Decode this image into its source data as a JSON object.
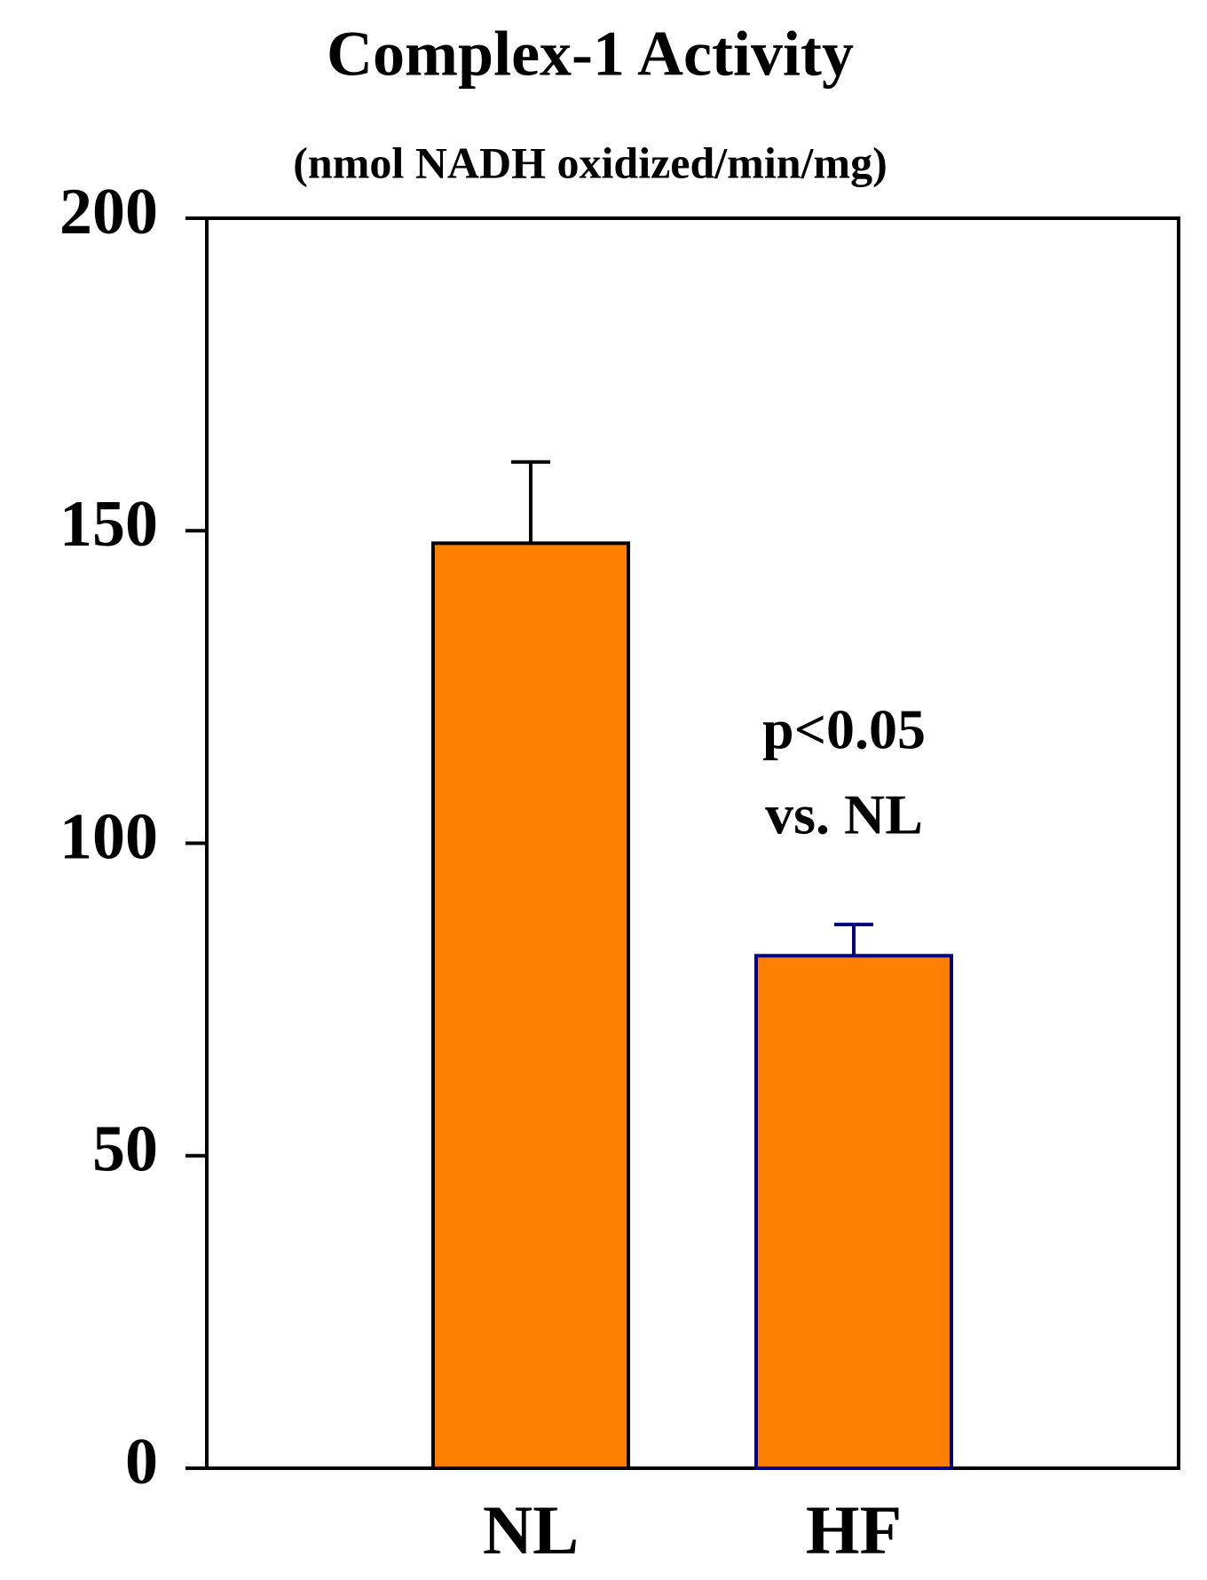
{
  "chart_data": {
    "type": "bar",
    "title": "Complex-1 Activity",
    "subtitle": "(nmol NADH oxidized/min/mg)",
    "categories": [
      "NL",
      "HF"
    ],
    "values": [
      148,
      82
    ],
    "errors": [
      13,
      5
    ],
    "color": "#ff8000",
    "edge_colors": [
      "#000000",
      "#000080"
    ],
    "ylim": [
      0,
      200
    ],
    "yticks": [
      0,
      50,
      100,
      150,
      200
    ],
    "annotation": [
      "p<0.05",
      "vs. NL"
    ]
  }
}
